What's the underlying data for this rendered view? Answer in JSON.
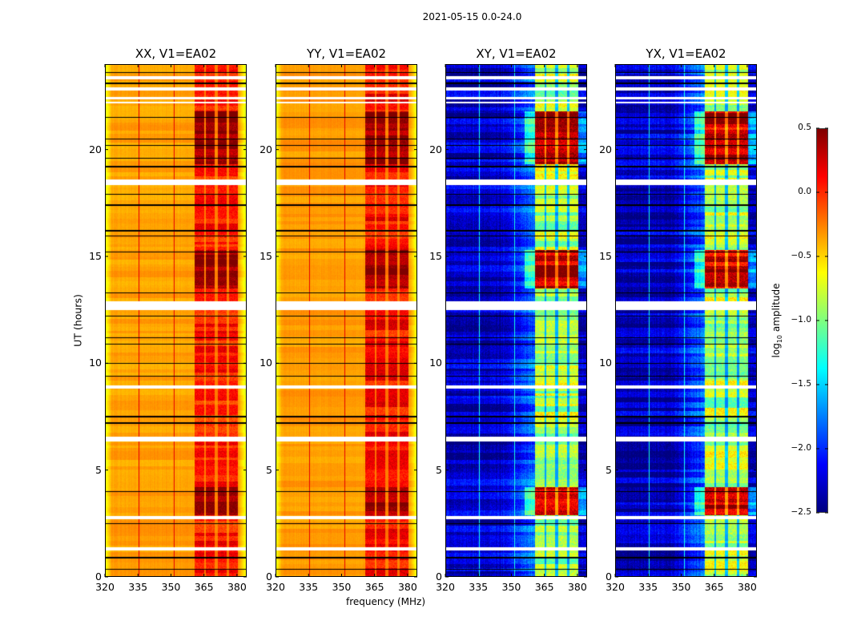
{
  "figure_title": "2021-05-15 0.0-24.0",
  "chart_data": {
    "type": "heatmap",
    "xlabel": "frequency (MHz)",
    "ylabel": "UT (hours)",
    "xlim": [
      320,
      384.4
    ],
    "ylim": [
      0,
      24
    ],
    "xticks": [
      "320",
      "335",
      "350",
      "365",
      "380"
    ],
    "yticks": [
      "0",
      "5",
      "10",
      "15",
      "20"
    ],
    "panels": [
      {
        "title": "XX, V1=EA02",
        "kind": "parallel",
        "background_level": -0.35,
        "band_level": 0.05,
        "strong_level": 0.45
      },
      {
        "title": "YY, V1=EA02",
        "kind": "parallel",
        "background_level": -0.33,
        "band_level": 0.1,
        "strong_level": 0.45
      },
      {
        "title": "XY, V1=EA02",
        "kind": "cross",
        "background_level": -2.3,
        "band_level": -0.85,
        "strong_level": 0.3
      },
      {
        "title": "YX, V1=EA02",
        "kind": "cross",
        "background_level": -2.3,
        "band_level": -0.85,
        "strong_level": 0.3
      }
    ],
    "rfi_bands_mhz": [
      [
        360.7,
        365.0
      ],
      [
        366.0,
        370.0
      ],
      [
        371.3,
        375.3
      ],
      [
        376.4,
        380.4
      ]
    ],
    "rfi_lines_mhz": [
      335.5,
      351.5
    ],
    "strong_rfi_hours": [
      [
        2.9,
        4.2
      ],
      [
        13.5,
        15.3
      ],
      [
        19.3,
        21.8
      ]
    ],
    "flagged_hours": [
      [
        23.3,
        23.45
      ],
      [
        22.75,
        22.9
      ],
      [
        22.35,
        22.45
      ],
      [
        22.15,
        22.25
      ],
      [
        18.35,
        18.6
      ],
      [
        12.5,
        12.9
      ],
      [
        8.8,
        8.95
      ],
      [
        6.35,
        6.55
      ],
      [
        2.7,
        2.85
      ],
      [
        1.25,
        1.4
      ]
    ],
    "gap_lines_hours": [
      23.6,
      23.1,
      21.5,
      20.5,
      20.2,
      19.6,
      19.2,
      17.9,
      17.4,
      16.2,
      15.95,
      15.2,
      13.3,
      12.2,
      11.2,
      10.9,
      10.0,
      9.4,
      7.5,
      7.2,
      4.0,
      2.5,
      0.9,
      0.35
    ],
    "colorbar": {
      "label_prefix": "log",
      "label_sub": "10",
      "label_suffix": " amplitude",
      "range": [
        -2.5,
        0.5
      ],
      "ticks": [
        "0.5",
        "0.0",
        "−0.5",
        "−1.0",
        "−1.5",
        "−2.0",
        "−2.5"
      ],
      "colormap": "jet"
    }
  }
}
